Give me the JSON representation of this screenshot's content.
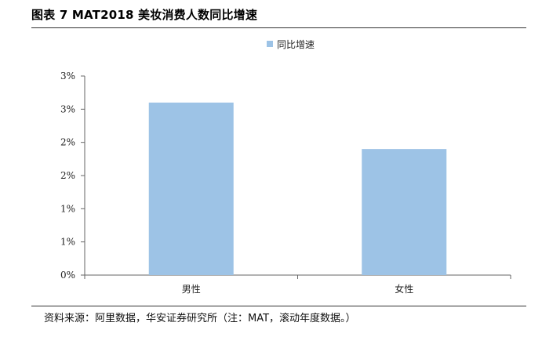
{
  "header": {
    "title": "图表 7 MAT2018 美妆消费人数同比增速"
  },
  "footer": {
    "source": "资料来源：阿里数据，华安证券研究所（注：MAT，滚动年度数据。）"
  },
  "chart_data": {
    "type": "bar",
    "title": "",
    "xlabel": "",
    "ylabel": "",
    "categories": [
      "男性",
      "女性"
    ],
    "series": [
      {
        "name": "同比增速",
        "values": [
          2.6,
          1.9
        ]
      }
    ],
    "y_tick_values": [
      0,
      0.5,
      1,
      1.5,
      2,
      2.5,
      3
    ],
    "y_tick_labels": [
      "0%",
      "1%",
      "1%",
      "2%",
      "2%",
      "3%",
      "3%"
    ],
    "ylim": [
      0,
      3
    ],
    "grid": false,
    "legend_position": "top-center",
    "bar_color": "#9dc3e6"
  }
}
